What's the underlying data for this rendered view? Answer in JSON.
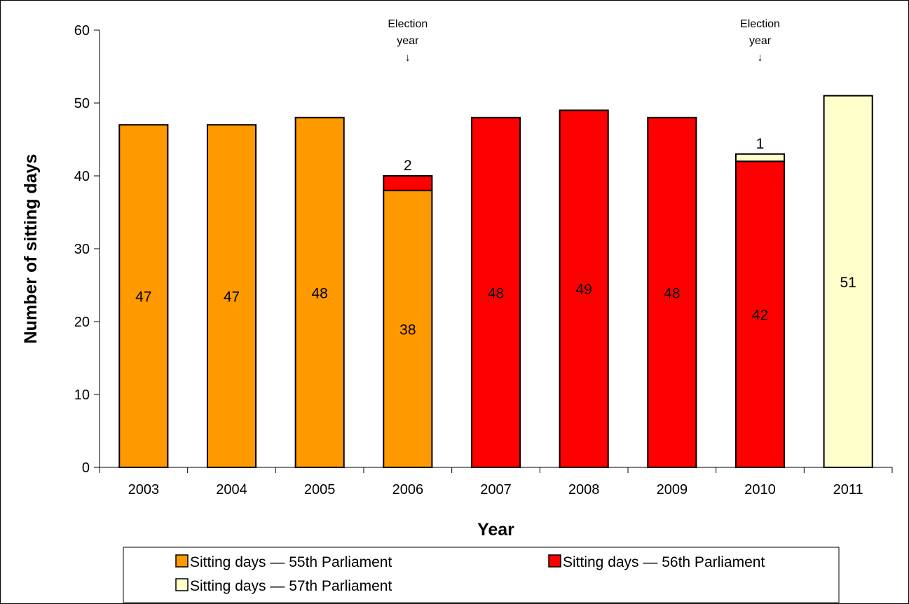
{
  "chart_data": {
    "type": "bar",
    "stacked": true,
    "xlabel": "Year",
    "ylabel": "Number of sitting days",
    "ylim": [
      0,
      60
    ],
    "yticks": [
      0,
      10,
      20,
      30,
      40,
      50,
      60
    ],
    "grid": false,
    "legend_position": "bottom",
    "categories": [
      "2003",
      "2004",
      "2005",
      "2006",
      "2007",
      "2008",
      "2009",
      "2010",
      "2011"
    ],
    "series": [
      {
        "name": "Sitting days — 55th Parliament",
        "color": "#FF9900",
        "values": [
          47,
          47,
          48,
          38,
          0,
          0,
          0,
          0,
          0
        ]
      },
      {
        "name": "Sitting days — 56th Parliament",
        "color": "#FF0000",
        "values": [
          0,
          0,
          0,
          2,
          48,
          49,
          48,
          42,
          0
        ]
      },
      {
        "name": "Sitting days — 57th Parliament",
        "color": "#FFFFCC",
        "values": [
          0,
          0,
          0,
          0,
          0,
          0,
          0,
          1,
          51
        ]
      }
    ],
    "annotations": [
      {
        "category": "2006",
        "lines": [
          "Election",
          "year",
          "↓"
        ]
      },
      {
        "category": "2010",
        "lines": [
          "Election",
          "year",
          "↓"
        ]
      }
    ]
  }
}
